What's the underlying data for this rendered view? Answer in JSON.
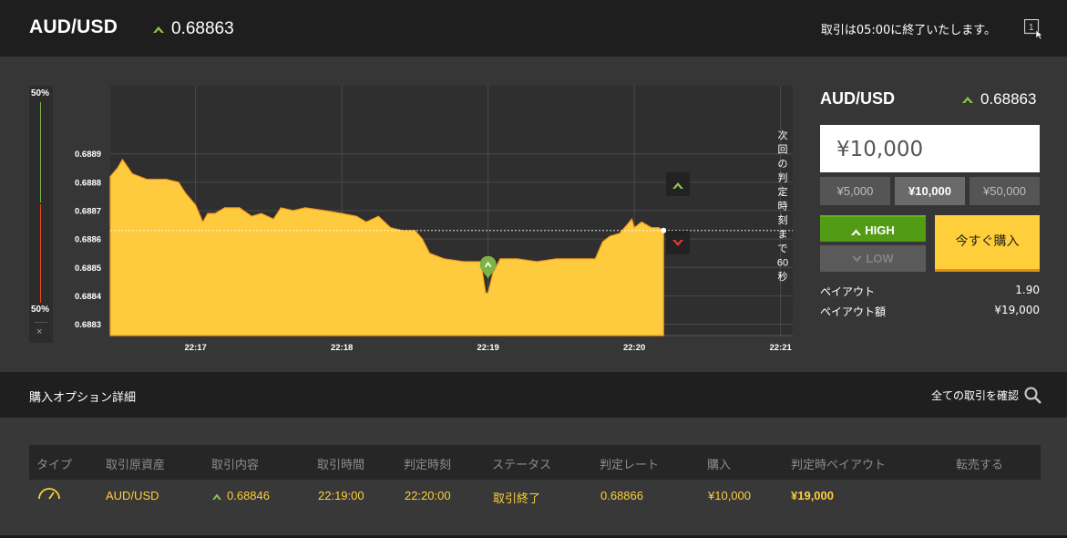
{
  "header": {
    "pair": "AUD/USD",
    "rate": "0.68863",
    "close_message": "取引は05:00に終了いたします。",
    "one_click_icon_label": "1"
  },
  "gauge": {
    "top_label": "50%",
    "bottom_label": "50%",
    "close_label": "×",
    "high_percent": 50,
    "low_percent": 50
  },
  "chart": {
    "vertical_text": "次回の判定時刻まで60秒",
    "y_ticks": [
      "0.6889",
      "0.6888",
      "0.6887",
      "0.6886",
      "0.6885",
      "0.6884",
      "0.6883"
    ],
    "x_ticks": [
      "22:17",
      "22:18",
      "22:19",
      "22:20",
      "22:21"
    ],
    "colors": {
      "area": "#fecb3e",
      "line": "#f59d1e",
      "grid": "#4a4a4a",
      "current": "#ffffff",
      "up": "#8bc34a",
      "down": "#e53935"
    },
    "icons": {
      "up_marker": "up-arrow-icon",
      "down_marker": "down-arrow-icon",
      "entry": "entry-pin-icon"
    }
  },
  "chart_data": {
    "type": "area",
    "x_range": [
      "22:16:25",
      "22:21:05"
    ],
    "ylim": [
      0.68826,
      0.68914
    ],
    "current_rate": 0.68863,
    "entry": {
      "time": "22:19:00",
      "rate": 0.68846
    },
    "x_ticks": [
      "22:17",
      "22:18",
      "22:19",
      "22:20",
      "22:21"
    ],
    "y_ticks": [
      0.6889,
      0.6888,
      0.6887,
      0.6886,
      0.6885,
      0.6884,
      0.6883
    ],
    "series": [
      {
        "values": [
          [
            "22:16:25",
            0.68882
          ],
          [
            "22:16:28",
            0.68885
          ],
          [
            "22:16:30",
            0.68888
          ],
          [
            "22:16:34",
            0.68883
          ],
          [
            "22:16:40",
            0.68881
          ],
          [
            "22:16:48",
            0.68881
          ],
          [
            "22:16:53",
            0.6888
          ],
          [
            "22:16:56",
            0.68876
          ],
          [
            "22:17:00",
            0.68872
          ],
          [
            "22:17:03",
            0.68866
          ],
          [
            "22:17:05",
            0.68869
          ],
          [
            "22:17:08",
            0.68869
          ],
          [
            "22:17:12",
            0.68871
          ],
          [
            "22:17:18",
            0.68871
          ],
          [
            "22:17:23",
            0.68868
          ],
          [
            "22:17:27",
            0.68869
          ],
          [
            "22:17:32",
            0.68867
          ],
          [
            "22:17:35",
            0.68871
          ],
          [
            "22:17:40",
            0.6887
          ],
          [
            "22:17:45",
            0.68871
          ],
          [
            "22:17:53",
            0.6887
          ],
          [
            "22:18:00",
            0.68869
          ],
          [
            "22:18:06",
            0.68868
          ],
          [
            "22:18:10",
            0.68866
          ],
          [
            "22:18:15",
            0.68868
          ],
          [
            "22:18:20",
            0.68864
          ],
          [
            "22:18:25",
            0.68863
          ],
          [
            "22:18:30",
            0.68863
          ],
          [
            "22:18:33",
            0.6886
          ],
          [
            "22:18:36",
            0.68855
          ],
          [
            "22:18:42",
            0.68853
          ],
          [
            "22:18:50",
            0.68852
          ],
          [
            "22:18:57",
            0.68852
          ],
          [
            "22:18:59",
            0.68841
          ],
          [
            "22:19:00",
            0.68841
          ],
          [
            "22:19:02",
            0.68848
          ],
          [
            "22:19:05",
            0.68853
          ],
          [
            "22:19:12",
            0.68853
          ],
          [
            "22:19:20",
            0.68852
          ],
          [
            "22:19:28",
            0.68853
          ],
          [
            "22:19:36",
            0.68853
          ],
          [
            "22:19:44",
            0.68853
          ],
          [
            "22:19:47",
            0.68859
          ],
          [
            "22:19:50",
            0.68861
          ],
          [
            "22:19:54",
            0.68862
          ],
          [
            "22:19:57",
            0.68865
          ],
          [
            "22:19:59",
            0.68867
          ],
          [
            "22:20:00",
            0.68864
          ],
          [
            "22:20:03",
            0.68866
          ],
          [
            "22:20:07",
            0.68864
          ],
          [
            "22:20:10",
            0.68864
          ],
          [
            "22:20:12",
            0.68863
          ]
        ]
      }
    ]
  },
  "panel": {
    "pair": "AUD/USD",
    "rate": "0.68863",
    "amount": "¥10,000",
    "amount_options": [
      "¥5,000",
      "¥10,000",
      "¥50,000"
    ],
    "high_label": "HIGH",
    "low_label": "LOW",
    "buy_label": "今すぐ購入",
    "payout_label": "ペイアウト",
    "payout_value": "1.90",
    "payout_amount_label": "ペイアウト額",
    "payout_amount_value": "¥19,000"
  },
  "details": {
    "title": "購入オプション詳細",
    "all_trades": "全ての取引を確認"
  },
  "table": {
    "headers": [
      "タイプ",
      "取引原資産",
      "取引内容",
      "取引時間",
      "判定時刻",
      "ステータス",
      "判定レート",
      "購入",
      "判定時ペイアウト",
      "転売する"
    ],
    "row": {
      "type_icon": "gauge-icon",
      "asset": "AUD/USD",
      "content": "0.68846",
      "trade_time": "22:19:00",
      "judge_time": "22:20:00",
      "status": "取引終了",
      "judge_rate": "0.68866",
      "purchase": "¥10,000",
      "payout": "¥19,000"
    }
  }
}
